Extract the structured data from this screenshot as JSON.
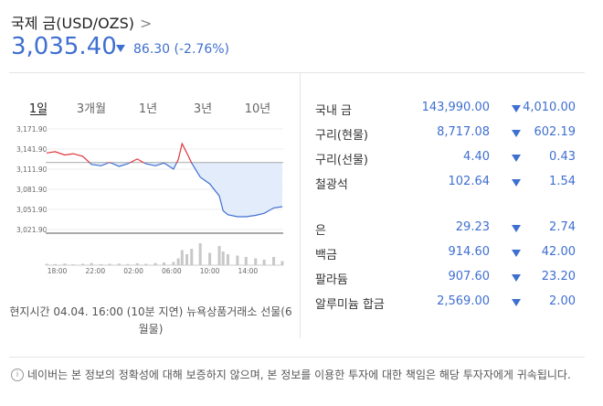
{
  "header": {
    "title": "국제 금(USD/OZS)",
    "price": "3,035.40",
    "change": "86.30",
    "change_pct": "(-2.76%)"
  },
  "tabs": [
    "1일",
    "3개월",
    "1년",
    "3년",
    "10년"
  ],
  "active_tab": 0,
  "chart": {
    "type": "line",
    "x": [
      -1.1,
      -0.2,
      0.8,
      1.7,
      2.7,
      3.6,
      4.6,
      5.5,
      6.5,
      7.4,
      8.4,
      9.3,
      10.3,
      11.2,
      12.2,
      12.7,
      13.1,
      13.6,
      14.1,
      15.0,
      16.0,
      17.0,
      17.4,
      17.9,
      18.9,
      19.8,
      20.8,
      21.7,
      22.7,
      23.6
    ],
    "values": [
      3136,
      3138,
      3133,
      3135,
      3131,
      3119,
      3117,
      3122,
      3116,
      3120,
      3127,
      3120,
      3117,
      3121,
      3112,
      3126,
      3150,
      3136,
      3121,
      3100,
      3090,
      3072,
      3050,
      3044,
      3041,
      3041,
      3043,
      3046,
      3054,
      3056
    ],
    "previous_close": 3121.7,
    "up_color": "#e0353b",
    "down_color": "#3f6fd0",
    "area_color": "#e3ecfb",
    "xlim": [
      -1.2,
      23.7
    ],
    "xticks": [
      {
        "value": 0,
        "label": "18:00"
      },
      {
        "value": 4,
        "label": "22:00"
      },
      {
        "value": 8,
        "label": "02:00"
      },
      {
        "value": 12,
        "label": "06:00"
      },
      {
        "value": 16,
        "label": "10:00"
      },
      {
        "value": 20,
        "label": "14:00"
      }
    ],
    "ylim": [
      3016.4,
      3177.4
    ],
    "yticks": [
      {
        "value": 3171.9,
        "label": "3,171.90"
      },
      {
        "value": 3141.9,
        "label": "3,141.90"
      },
      {
        "value": 3111.9,
        "label": "3,111.90"
      },
      {
        "value": 3081.9,
        "label": "3,081.90"
      },
      {
        "value": 3051.9,
        "label": "3,051.90"
      },
      {
        "value": 3021.9,
        "label": "3,021.90"
      }
    ],
    "grid": true,
    "volume": {
      "values": [
        5,
        4,
        6,
        3,
        5,
        8,
        4,
        5,
        6,
        4,
        7,
        5,
        8,
        10,
        12,
        25,
        55,
        40,
        60,
        80,
        45,
        70,
        50,
        40,
        35,
        30,
        25,
        20,
        30,
        15
      ],
      "ylim": [
        0,
        100
      ],
      "color": "#c8c8c8"
    }
  },
  "caption": "현지시간 04.04. 16:00 (10분 지연) 뉴욕상품거래소 선물(6월물)",
  "quote_groups": [
    [
      {
        "name": "국내 금",
        "price": "143,990.00",
        "change": "4,010.00"
      },
      {
        "name": "구리(현물)",
        "price": "8,717.08",
        "change": "602.19"
      },
      {
        "name": "구리(선물)",
        "price": "4.40",
        "change": "0.43"
      },
      {
        "name": "철광석",
        "price": "102.64",
        "change": "1.54"
      }
    ],
    [
      {
        "name": "은",
        "price": "29.23",
        "change": "2.74"
      },
      {
        "name": "백금",
        "price": "914.60",
        "change": "42.00"
      },
      {
        "name": "팔라듐",
        "price": "907.60",
        "change": "23.20"
      },
      {
        "name": "알루미늄 합금",
        "price": "2,569.00",
        "change": "2.00"
      }
    ]
  ],
  "footer": "네이버는 본 정보의 정확성에 대해 보증하지 않으며, 본 정보를 이용한 투자에 대한 책임은 해당 투자자에게 귀속됩니다."
}
